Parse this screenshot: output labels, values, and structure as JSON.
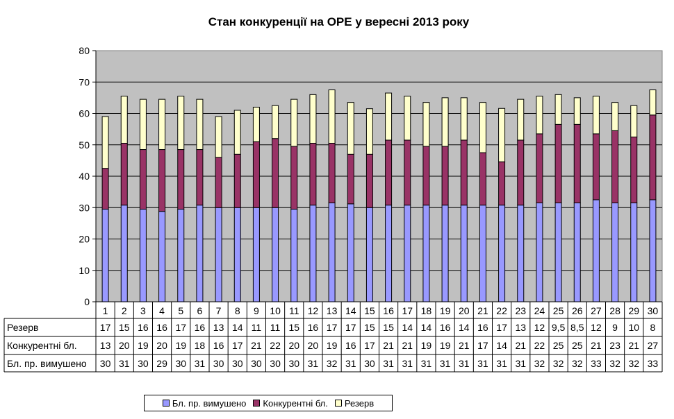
{
  "chart_data": {
    "type": "bar",
    "stacked": true,
    "title": "Стан конкуренції на ОРЕ  у вересні 2013 року",
    "ylim": [
      0,
      80
    ],
    "yticks": [
      "0",
      "10",
      "20",
      "30",
      "40",
      "50",
      "60",
      "70",
      "80"
    ],
    "grid": true,
    "legend_position": "bottom",
    "plot_background": "#c0c0c0",
    "categories": [
      "1",
      "2",
      "3",
      "4",
      "5",
      "6",
      "7",
      "8",
      "9",
      "10",
      "11",
      "12",
      "13",
      "14",
      "15",
      "16",
      "17",
      "18",
      "19",
      "20",
      "21",
      "22",
      "23",
      "24",
      "25",
      "26",
      "27",
      "28",
      "29",
      "30"
    ],
    "series": [
      {
        "name": "Бл. пр. вимушено",
        "color": "#9999ff",
        "values": [
          29.5,
          30.8,
          29.5,
          28.8,
          29.5,
          30.8,
          30.0,
          30.0,
          30.0,
          30.0,
          29.5,
          30.8,
          31.5,
          31.2,
          30.0,
          30.8,
          30.8,
          30.8,
          30.8,
          30.8,
          30.8,
          30.8,
          30.8,
          31.5,
          31.5,
          31.5,
          32.5,
          31.5,
          31.5,
          32.5
        ],
        "labels": [
          "30",
          "31",
          "30",
          "29",
          "30",
          "31",
          "30",
          "30",
          "30",
          "30",
          "30",
          "31",
          "32",
          "31",
          "30",
          "31",
          "31",
          "31",
          "31",
          "31",
          "31",
          "31",
          "31",
          "32",
          "32",
          "32",
          "33",
          "32",
          "32",
          "33"
        ]
      },
      {
        "name": "Конкурентні бл.",
        "color": "#993366",
        "values": [
          13.0,
          19.7,
          19.0,
          19.7,
          19.0,
          17.7,
          16.0,
          17.0,
          21.0,
          22.0,
          20.0,
          19.7,
          19.0,
          15.8,
          17.0,
          20.7,
          20.7,
          18.7,
          18.7,
          20.7,
          16.7,
          13.8,
          20.7,
          22.0,
          25.0,
          25.0,
          21.0,
          23.0,
          21.0,
          27.0
        ],
        "labels": [
          "13",
          "20",
          "19",
          "20",
          "19",
          "18",
          "16",
          "17",
          "21",
          "22",
          "20",
          "20",
          "19",
          "16",
          "17",
          "21",
          "21",
          "19",
          "19",
          "21",
          "17",
          "14",
          "21",
          "22",
          "25",
          "25",
          "21",
          "23",
          "21",
          "27"
        ]
      },
      {
        "name": "Резерв",
        "color": "#ffffcc",
        "values": [
          16.5,
          15.0,
          16.0,
          16.0,
          17.0,
          16.0,
          13.0,
          14.0,
          11.0,
          10.5,
          15.0,
          15.5,
          17.0,
          16.5,
          14.5,
          15.0,
          14.0,
          14.0,
          15.5,
          13.5,
          16.0,
          17.0,
          13.0,
          12.0,
          9.5,
          8.5,
          12.0,
          9.0,
          10.0,
          8.0
        ],
        "labels": [
          "17",
          "15",
          "16",
          "16",
          "17",
          "16",
          "13",
          "14",
          "11",
          "11",
          "15",
          "16",
          "17",
          "17",
          "15",
          "15",
          "14",
          "14",
          "16",
          "14",
          "16",
          "17",
          "13",
          "12",
          "9,5",
          "8,5",
          "12",
          "9",
          "10",
          "8"
        ]
      }
    ],
    "table_row_order": [
      "Резерв",
      "Конкурентні бл.",
      "Бл. пр. вимушено"
    ],
    "legend_order": [
      "Бл. пр. вимушено",
      "Конкурентні бл.",
      "Резерв"
    ]
  }
}
